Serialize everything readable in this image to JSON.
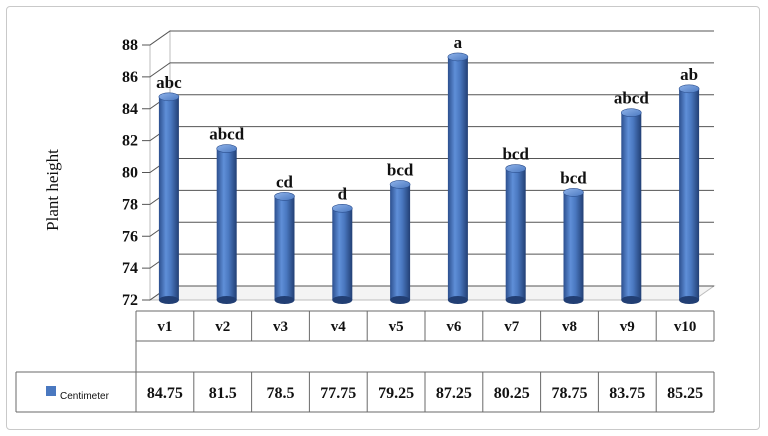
{
  "chart_data": {
    "type": "bar",
    "style": "3d-cylinder",
    "title": "",
    "ylabel": "Plant height",
    "xlabel": "",
    "ylim": [
      72,
      88
    ],
    "yticks": [
      72,
      74,
      76,
      78,
      80,
      82,
      84,
      86,
      88
    ],
    "grid": true,
    "categories": [
      "v1",
      "v2",
      "v3",
      "v4",
      "v5",
      "v6",
      "v7",
      "v8",
      "v9",
      "v10"
    ],
    "series": [
      {
        "name": "Centimeter",
        "color": "#4a78c0",
        "values": [
          84.75,
          81.5,
          78.5,
          77.75,
          79.25,
          87.25,
          80.25,
          78.75,
          83.75,
          85.25
        ],
        "value_labels": [
          "84.75",
          "81.5",
          "78.5",
          "77.75",
          "79.25",
          "87.25",
          "80.25",
          "78.75",
          "83.75",
          "85.25"
        ]
      }
    ],
    "letter_labels": [
      "abc",
      "abcd",
      "cd",
      "d",
      "bcd",
      "a",
      "bcd",
      "bcd",
      "abcd",
      "ab"
    ],
    "data_table": true
  }
}
